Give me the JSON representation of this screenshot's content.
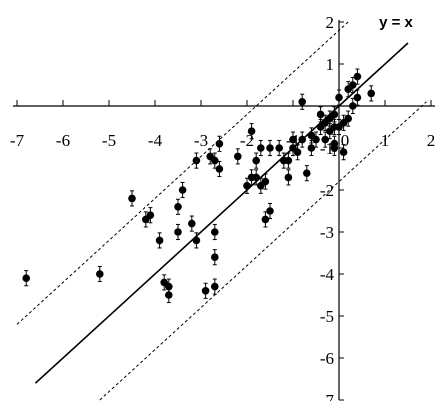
{
  "chart_data": {
    "type": "scatter",
    "title": "",
    "xlabel": "",
    "ylabel": "",
    "xlim": [
      -7,
      2
    ],
    "ylim": [
      -7,
      2
    ],
    "x_ticks": [
      "-7",
      "-6",
      "-5",
      "-4",
      "-3",
      "-2",
      "-1",
      "0",
      "1",
      "2"
    ],
    "y_ticks": [
      "2",
      "1",
      "0",
      "-1",
      "-2",
      "-3",
      "-4",
      "-5",
      "-6",
      "-7"
    ],
    "grid": false,
    "legend": "none",
    "annotation": "y = x",
    "lines": [
      {
        "style": "solid",
        "intercept": 0,
        "slope": 1,
        "x_range": [
          -6.6,
          1.5
        ]
      },
      {
        "style": "dashed",
        "intercept": 1.8,
        "slope": 1,
        "x_range": [
          -7.0,
          0.2
        ]
      },
      {
        "style": "dashed",
        "intercept": -1.8,
        "slope": 1,
        "x_range": [
          -5.2,
          1.9
        ]
      }
    ],
    "points": [
      {
        "x": -6.8,
        "y": -4.1
      },
      {
        "x": -5.2,
        "y": -4.0
      },
      {
        "x": -4.5,
        "y": -2.2
      },
      {
        "x": -4.2,
        "y": -2.7
      },
      {
        "x": -4.1,
        "y": -2.6
      },
      {
        "x": -3.9,
        "y": -3.2
      },
      {
        "x": -3.8,
        "y": -4.2
      },
      {
        "x": -3.7,
        "y": -4.3
      },
      {
        "x": -3.7,
        "y": -4.5
      },
      {
        "x": -3.5,
        "y": -2.4
      },
      {
        "x": -3.5,
        "y": -3.0
      },
      {
        "x": -3.4,
        "y": -2.0
      },
      {
        "x": -3.2,
        "y": -2.8
      },
      {
        "x": -3.1,
        "y": -1.3
      },
      {
        "x": -3.1,
        "y": -3.2
      },
      {
        "x": -2.9,
        "y": -4.4
      },
      {
        "x": -2.8,
        "y": -1.2
      },
      {
        "x": -2.7,
        "y": -1.3
      },
      {
        "x": -2.7,
        "y": -3.0
      },
      {
        "x": -2.7,
        "y": -3.6
      },
      {
        "x": -2.7,
        "y": -4.3
      },
      {
        "x": -2.6,
        "y": -0.9
      },
      {
        "x": -2.6,
        "y": -1.5
      },
      {
        "x": -2.2,
        "y": -1.2
      },
      {
        "x": -2.0,
        "y": -1.9
      },
      {
        "x": -1.9,
        "y": -0.6
      },
      {
        "x": -1.9,
        "y": -1.7
      },
      {
        "x": -1.8,
        "y": -1.3
      },
      {
        "x": -1.8,
        "y": -1.7
      },
      {
        "x": -1.7,
        "y": -1.0
      },
      {
        "x": -1.7,
        "y": -1.9
      },
      {
        "x": -1.6,
        "y": -1.8
      },
      {
        "x": -1.6,
        "y": -2.7
      },
      {
        "x": -1.5,
        "y": -2.5
      },
      {
        "x": -1.5,
        "y": -1.0
      },
      {
        "x": -1.3,
        "y": -1.0
      },
      {
        "x": -1.2,
        "y": -1.3
      },
      {
        "x": -1.1,
        "y": -1.7
      },
      {
        "x": -1.1,
        "y": -1.3
      },
      {
        "x": -1.0,
        "y": -1.0
      },
      {
        "x": -1.0,
        "y": -0.8
      },
      {
        "x": -0.9,
        "y": -1.1
      },
      {
        "x": -0.8,
        "y": -0.8
      },
      {
        "x": -0.8,
        "y": 0.1
      },
      {
        "x": -0.7,
        "y": -1.6
      },
      {
        "x": -0.6,
        "y": -0.7
      },
      {
        "x": -0.6,
        "y": -1.0
      },
      {
        "x": -0.5,
        "y": -0.8
      },
      {
        "x": -0.4,
        "y": -0.5
      },
      {
        "x": -0.4,
        "y": -0.2
      },
      {
        "x": -0.3,
        "y": -0.4
      },
      {
        "x": -0.3,
        "y": -0.8
      },
      {
        "x": -0.2,
        "y": -0.3
      },
      {
        "x": -0.2,
        "y": -0.6
      },
      {
        "x": -0.1,
        "y": -0.5
      },
      {
        "x": -0.1,
        "y": -0.9
      },
      {
        "x": -0.1,
        "y": -1.0
      },
      {
        "x": -0.1,
        "y": -0.2
      },
      {
        "x": 0.0,
        "y": -0.5
      },
      {
        "x": 0.0,
        "y": 0.2
      },
      {
        "x": 0.1,
        "y": -0.4
      },
      {
        "x": 0.1,
        "y": -1.1
      },
      {
        "x": 0.2,
        "y": -0.3
      },
      {
        "x": 0.2,
        "y": 0.4
      },
      {
        "x": 0.3,
        "y": 0.0
      },
      {
        "x": 0.3,
        "y": 0.5
      },
      {
        "x": 0.4,
        "y": 0.2
      },
      {
        "x": 0.4,
        "y": 0.7
      },
      {
        "x": 0.7,
        "y": 0.3
      }
    ],
    "error_bar": 0.18
  }
}
